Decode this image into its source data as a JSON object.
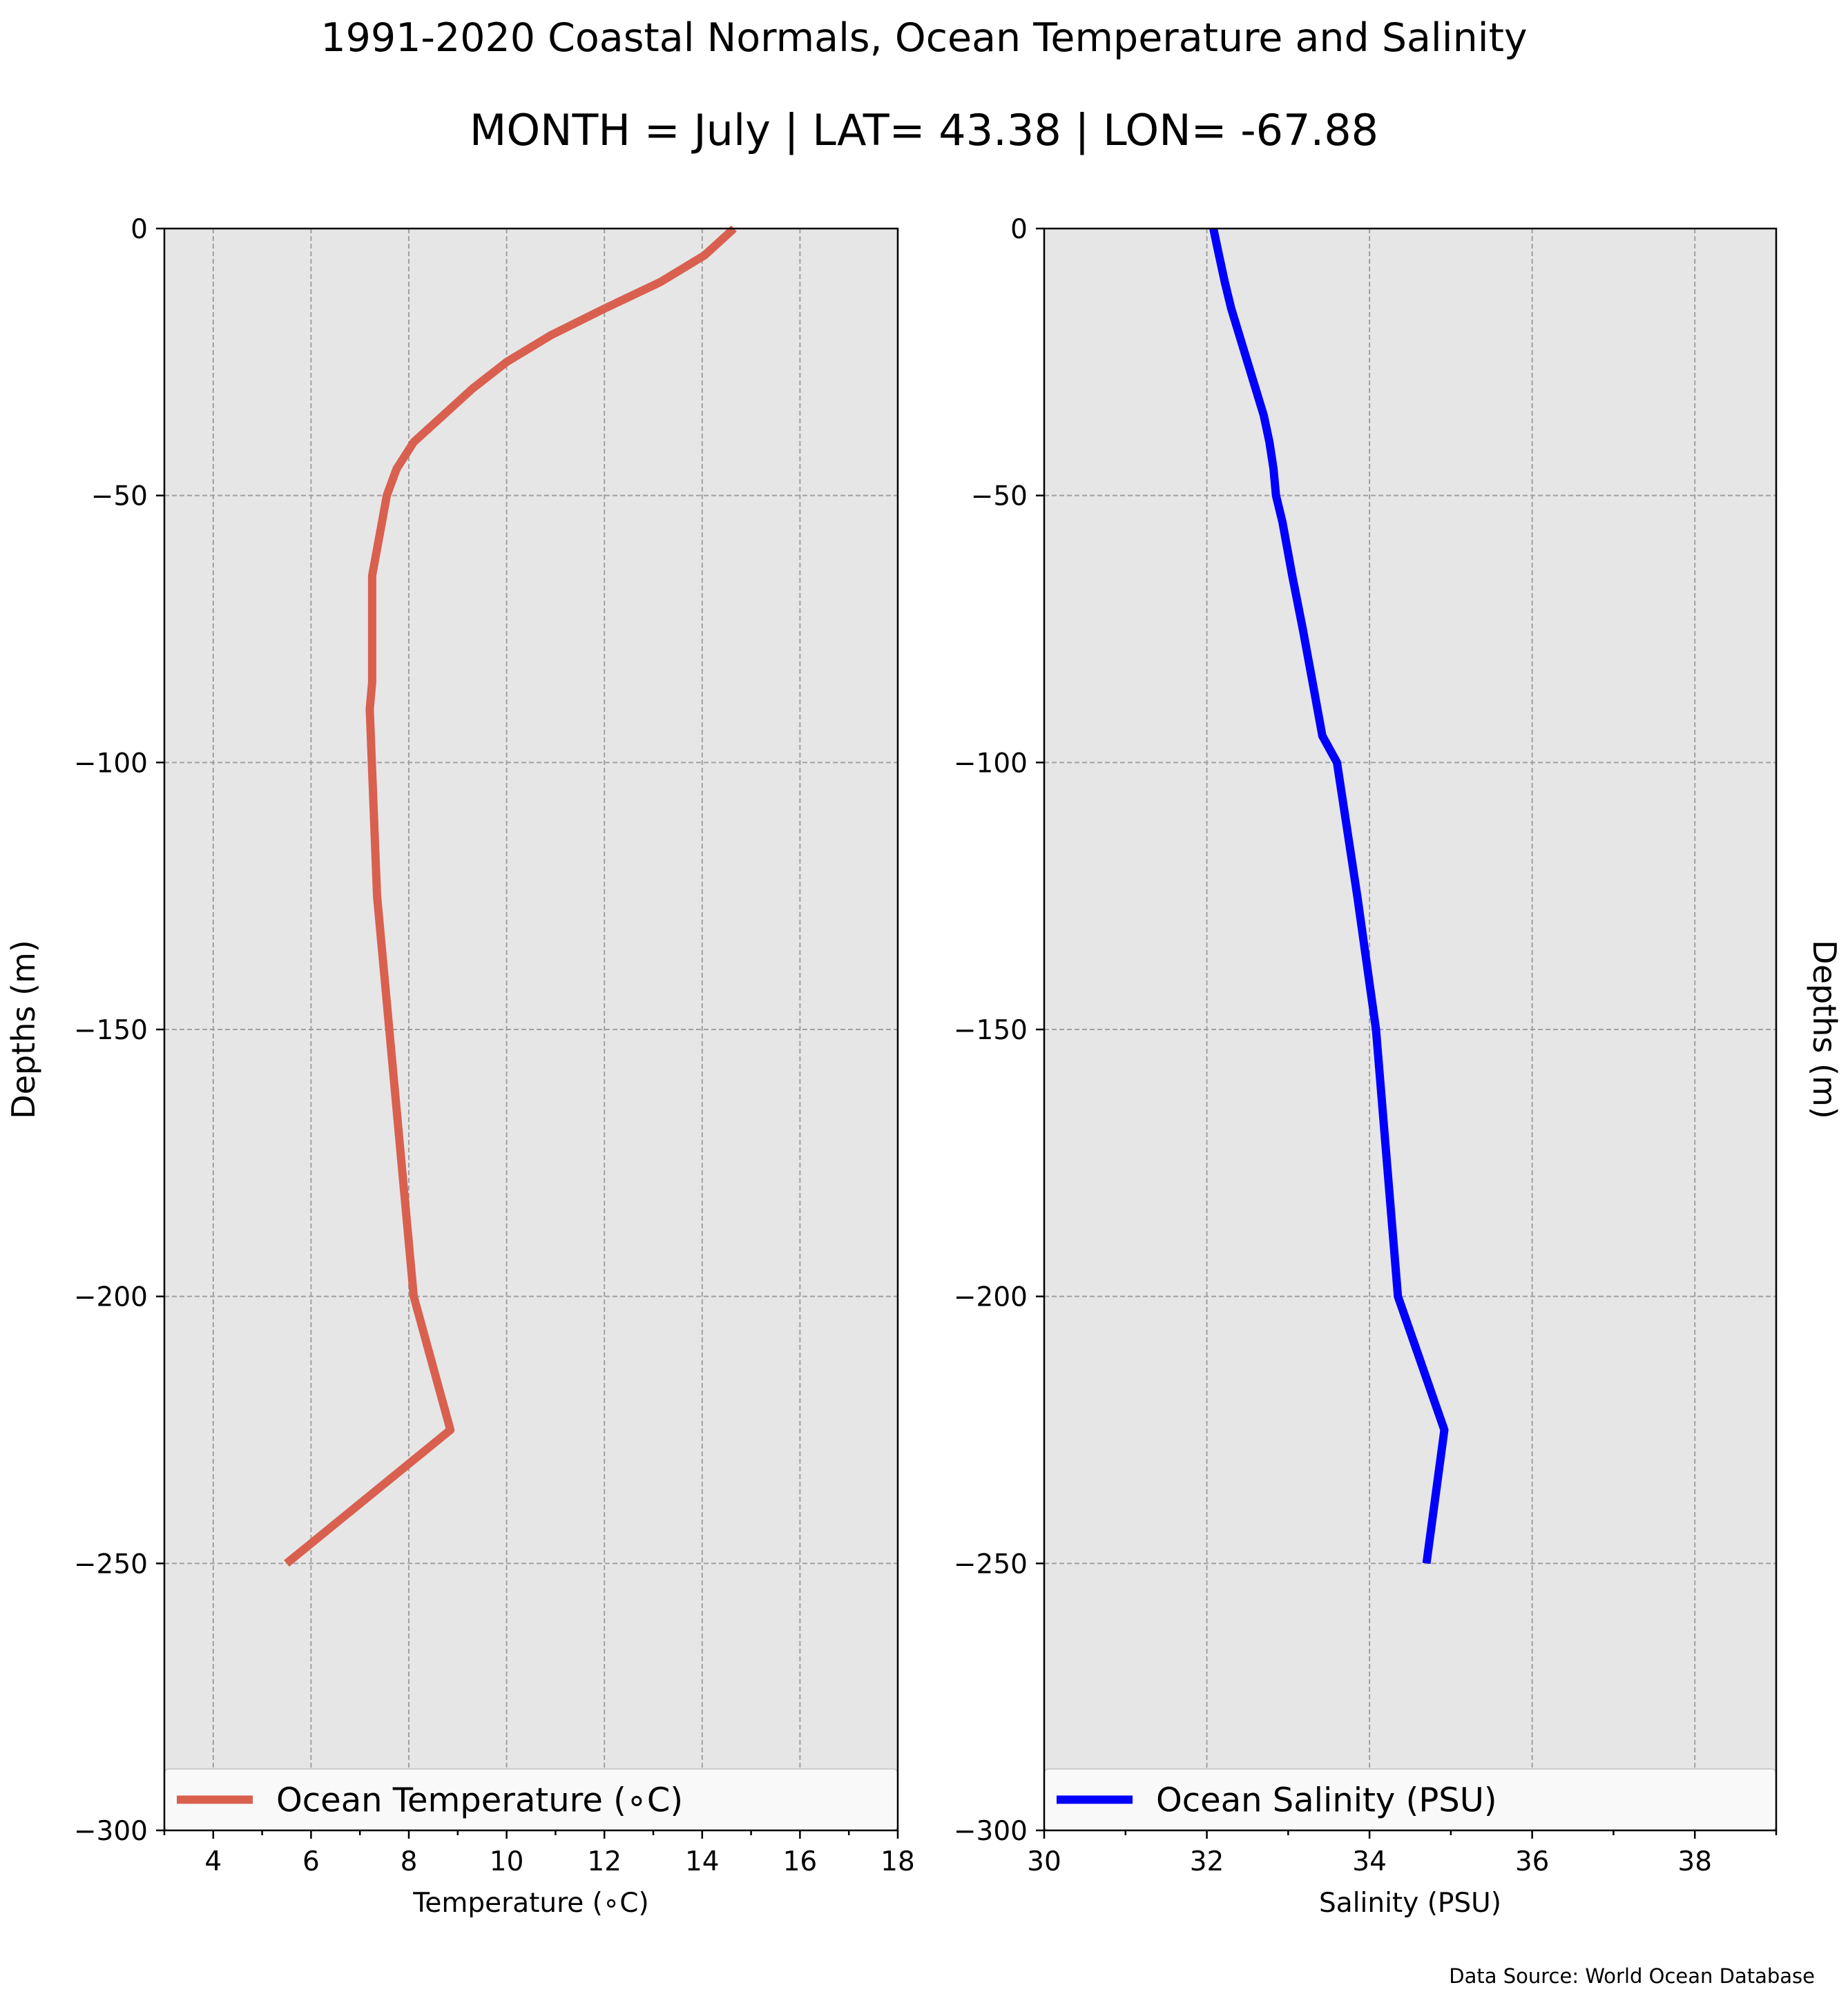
{
  "figure": {
    "title": "1991-2020 Coastal Normals, Ocean Temperature and Salinity",
    "subtitle": "MONTH = July | LAT= 43.38 | LON= -67.88",
    "source": "Data Source: World Ocean Database",
    "background_color": "#ffffff",
    "plot_background_color": "#e6e6e6"
  },
  "chart_data": [
    {
      "type": "line",
      "orientation": "vertical-profile",
      "xlabel": "Temperature ($^\\circ$C)",
      "xlabel_display": "Temperature (∘C)",
      "ylabel": "Depths (m)",
      "ylabel_side": "left",
      "xlim": [
        3,
        18
      ],
      "ylim": [
        -300,
        0
      ],
      "xticks": [
        4,
        6,
        8,
        10,
        12,
        14,
        16,
        18
      ],
      "xticklabels": [
        "4",
        "6",
        "8",
        "10",
        "12",
        "14",
        "16",
        "18"
      ],
      "yticks": [
        0,
        -50,
        -100,
        -150,
        -200,
        -250,
        -300
      ],
      "yticklabels": [
        "0",
        "−50",
        "−100",
        "−150",
        "−200",
        "−250",
        "−300"
      ],
      "grid": true,
      "legend_location": "bottom",
      "series": [
        {
          "name": "Ocean Temperature (∘C)",
          "color": "#d9604f",
          "x": [
            14.65,
            14.05,
            13.15,
            12.0,
            10.9,
            10.0,
            9.3,
            8.7,
            8.1,
            7.75,
            7.55,
            7.45,
            7.35,
            7.25,
            7.25,
            7.25,
            7.25,
            7.2,
            7.35,
            7.6,
            7.85,
            8.1,
            8.85,
            5.5
          ],
          "y": [
            0,
            -5,
            -10,
            -15,
            -20,
            -25,
            -30,
            -35,
            -40,
            -45,
            -50,
            -55,
            -60,
            -65,
            -70,
            -75,
            -85,
            -90,
            -125,
            -150,
            -175,
            -200,
            -225,
            -250
          ]
        }
      ]
    },
    {
      "type": "line",
      "orientation": "vertical-profile",
      "xlabel": "Salinity (PSU)",
      "ylabel": "Depths (m)",
      "ylabel_side": "right",
      "xlim": [
        30,
        39
      ],
      "ylim": [
        -300,
        0
      ],
      "xticks": [
        30,
        32,
        34,
        36,
        38
      ],
      "xticklabels": [
        "30",
        "32",
        "34",
        "36",
        "38"
      ],
      "yticks": [
        0,
        -50,
        -100,
        -150,
        -200,
        -250,
        -300
      ],
      "yticklabels": [
        "0",
        "−50",
        "−100",
        "−150",
        "−200",
        "−250",
        "−300"
      ],
      "grid": true,
      "legend_location": "bottom",
      "series": [
        {
          "name": "Ocean Salinity (PSU)",
          "color": "#0000ff",
          "x": [
            32.08,
            32.15,
            32.22,
            32.3,
            32.4,
            32.5,
            32.6,
            32.7,
            32.77,
            32.82,
            32.85,
            32.93,
            33.05,
            33.18,
            33.3,
            33.42,
            33.6,
            33.85,
            34.08,
            34.35,
            34.92,
            34.7
          ],
          "y": [
            0,
            -5,
            -10,
            -15,
            -20,
            -25,
            -30,
            -35,
            -40,
            -45,
            -50,
            -55,
            -65,
            -75,
            -85,
            -95,
            -100,
            -125,
            -150,
            -200,
            -225,
            -250
          ]
        }
      ]
    }
  ]
}
